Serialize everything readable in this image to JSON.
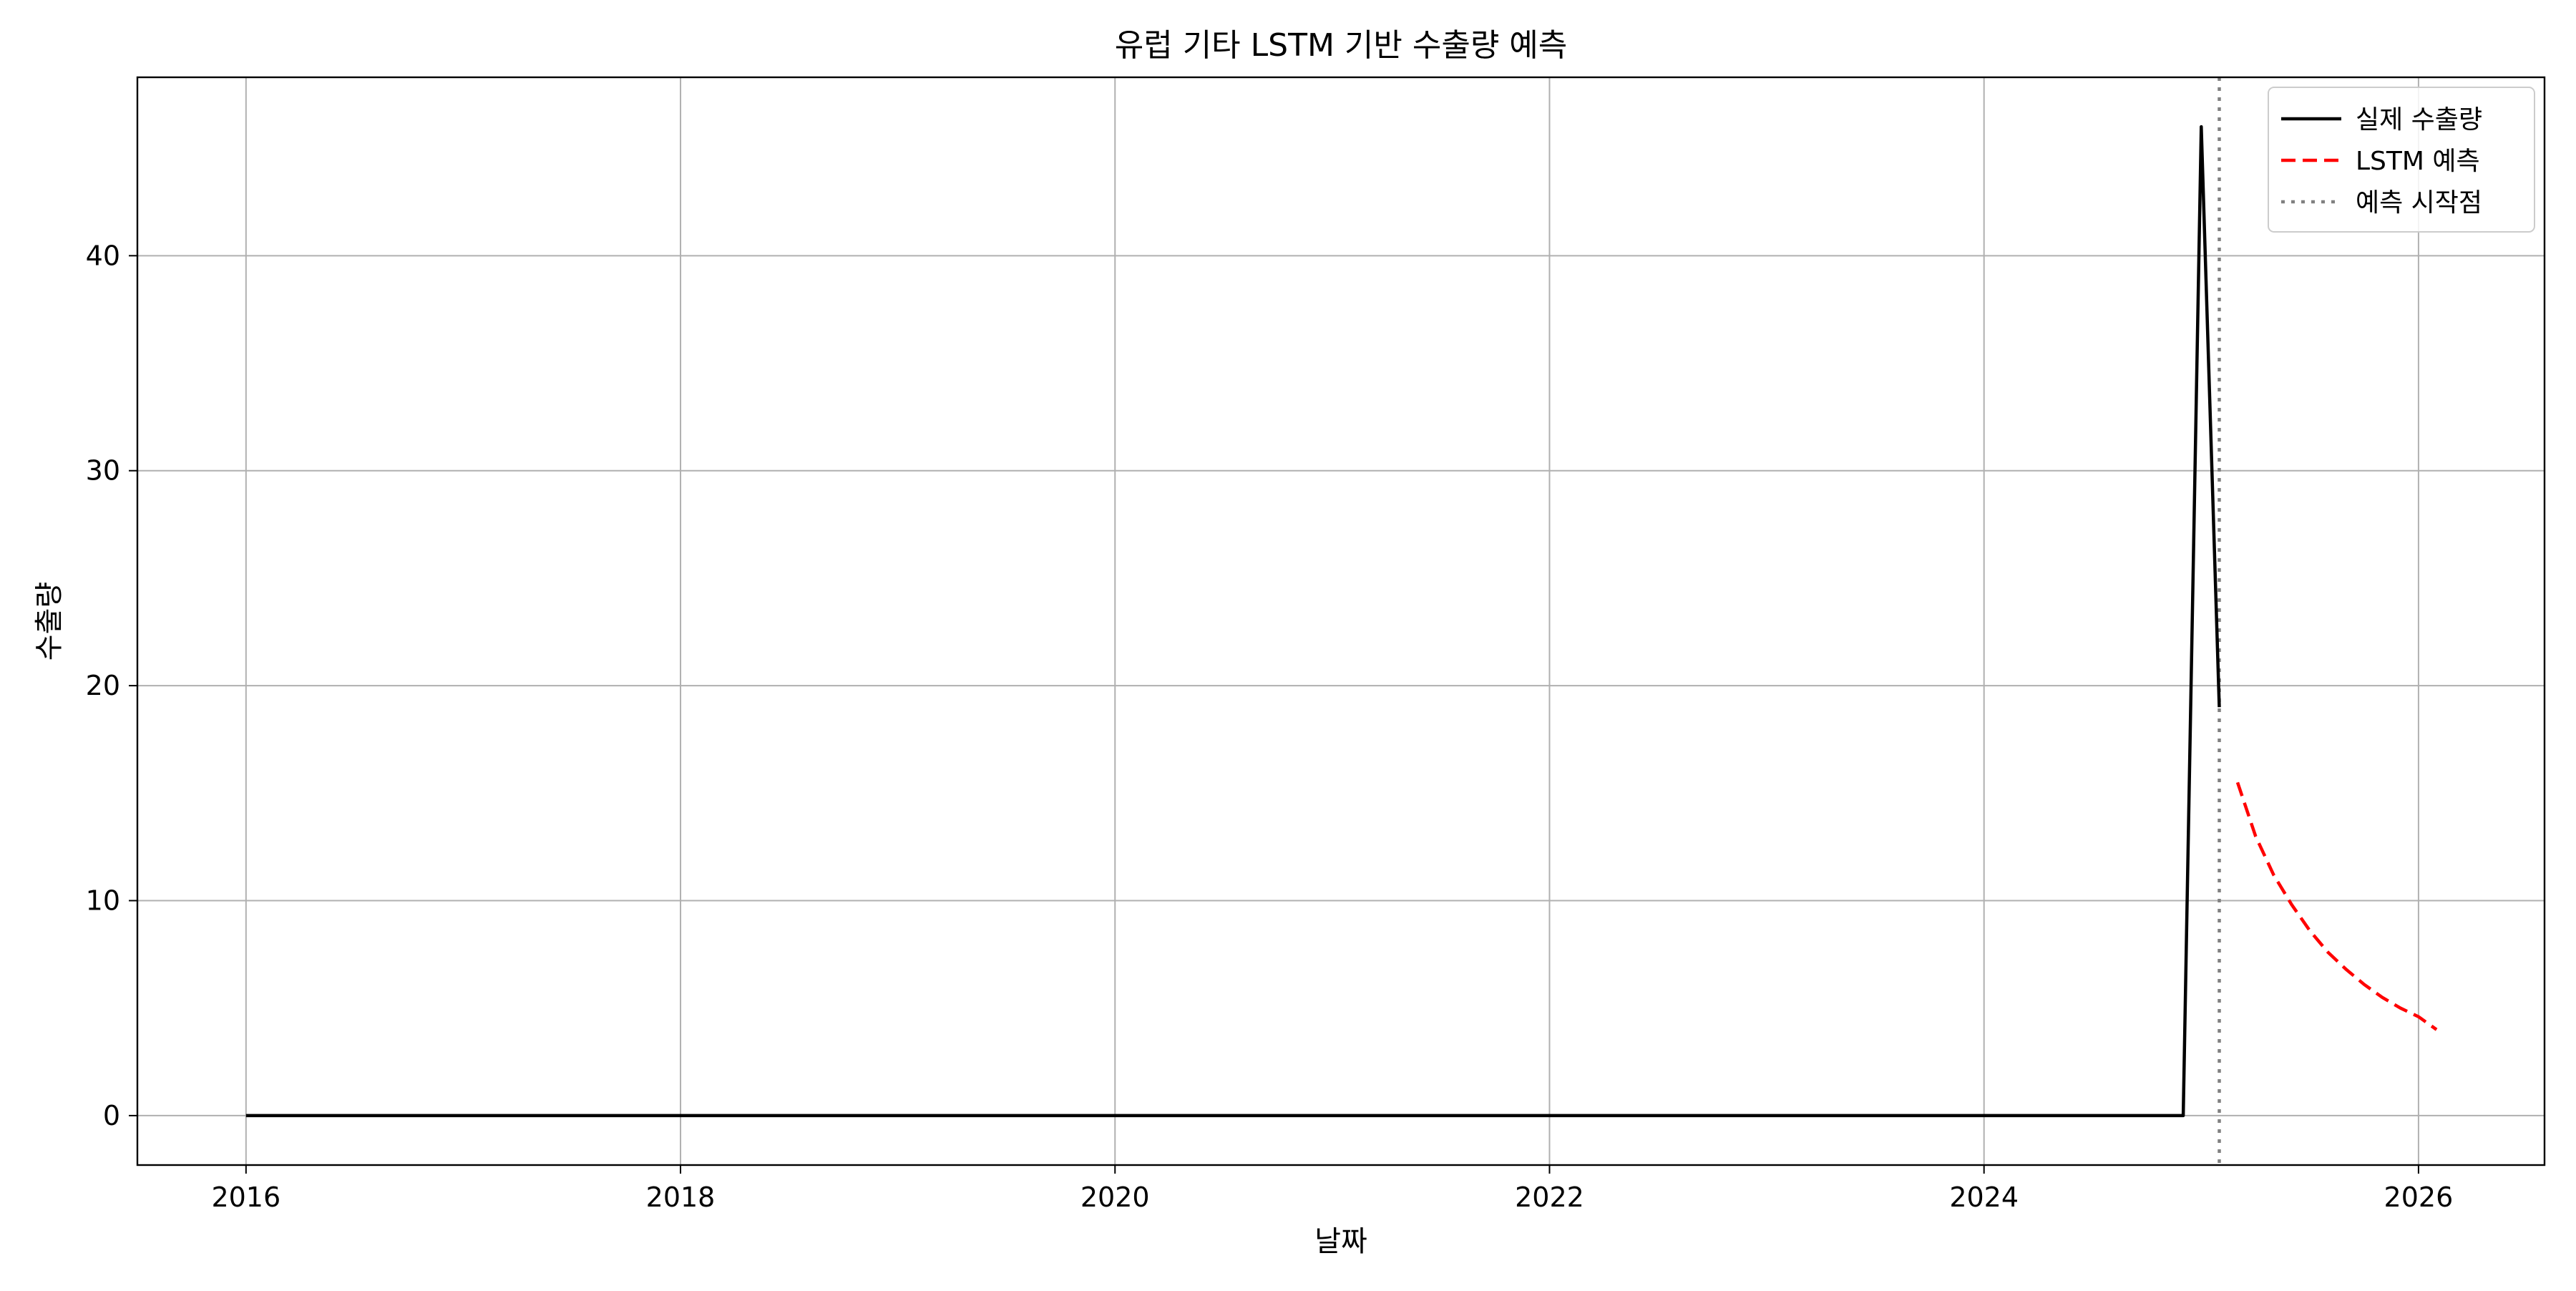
{
  "chart_data": {
    "type": "line",
    "title": "유럽 기타 LSTM 기반 수출량 예측",
    "xlabel": "날짜",
    "ylabel": "수출량",
    "xlim": [
      2015.5,
      2026.58
    ],
    "ylim": [
      -2.3,
      48.3
    ],
    "x_ticks": [
      2016,
      2018,
      2020,
      2022,
      2024,
      2026
    ],
    "x_tick_labels": [
      "2016",
      "2018",
      "2020",
      "2022",
      "2024",
      "2026"
    ],
    "y_ticks": [
      0,
      10,
      20,
      30,
      40
    ],
    "y_tick_labels": [
      "0",
      "10",
      "20",
      "30",
      "40"
    ],
    "grid": true,
    "legend_position": "top-right",
    "series": [
      {
        "name": "실제 수출량",
        "color": "#000000",
        "style": "solid",
        "x": [
          2016.0,
          2024.917,
          2025.0,
          2025.083
        ],
        "y": [
          0,
          0,
          46,
          19
        ]
      },
      {
        "name": "LSTM 예측",
        "color": "#ff0000",
        "style": "dashed",
        "x": [
          2025.167,
          2025.25,
          2025.333,
          2025.417,
          2025.5,
          2025.583,
          2025.667,
          2025.75,
          2025.833,
          2025.917,
          2026.0,
          2026.083
        ],
        "y": [
          15.5,
          13.0,
          11.2,
          9.8,
          8.6,
          7.6,
          6.8,
          6.1,
          5.5,
          5.0,
          4.6,
          4.0
        ]
      }
    ],
    "vline": {
      "name": "예측 시작점",
      "x": 2025.083,
      "color": "#808080",
      "style": "dotted"
    }
  }
}
